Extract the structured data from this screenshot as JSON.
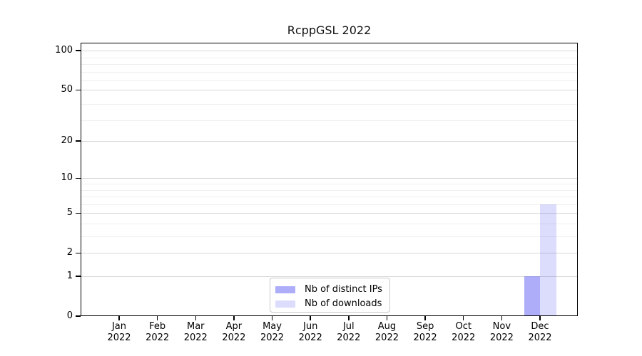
{
  "chart_data": {
    "type": "bar",
    "title": "RcppGSL 2022",
    "categories": [
      "Jan 2022",
      "Feb 2022",
      "Mar 2022",
      "Apr 2022",
      "May 2022",
      "Jun 2022",
      "Jul 2022",
      "Aug 2022",
      "Sep 2022",
      "Oct 2022",
      "Nov 2022",
      "Dec 2022"
    ],
    "series": [
      {
        "name": "Nb of distinct IPs",
        "color": "rgba(60,60,240,0.42)",
        "values": [
          0,
          0,
          0,
          0,
          0,
          0,
          0,
          0,
          0,
          0,
          0,
          1
        ]
      },
      {
        "name": "Nb of downloads",
        "color": "rgba(60,60,240,0.18)",
        "values": [
          0,
          0,
          0,
          0,
          0,
          0,
          0,
          0,
          0,
          0,
          0,
          6
        ]
      }
    ],
    "xlabel": "",
    "ylabel": "",
    "yaxis": {
      "scale": "log1p",
      "ticks": [
        0,
        1,
        2,
        5,
        10,
        20,
        50,
        100
      ],
      "minor_gridlines": [
        3,
        4,
        6,
        7,
        8,
        9,
        29,
        39,
        59,
        69,
        79,
        89
      ],
      "ylim": [
        0,
        115
      ]
    },
    "grid": true,
    "legend_position": "lower center",
    "colors": {
      "major_grid": "#d7d7d7",
      "minor_grid": "#efefef",
      "axis": "#000000",
      "background": "#ffffff"
    }
  }
}
